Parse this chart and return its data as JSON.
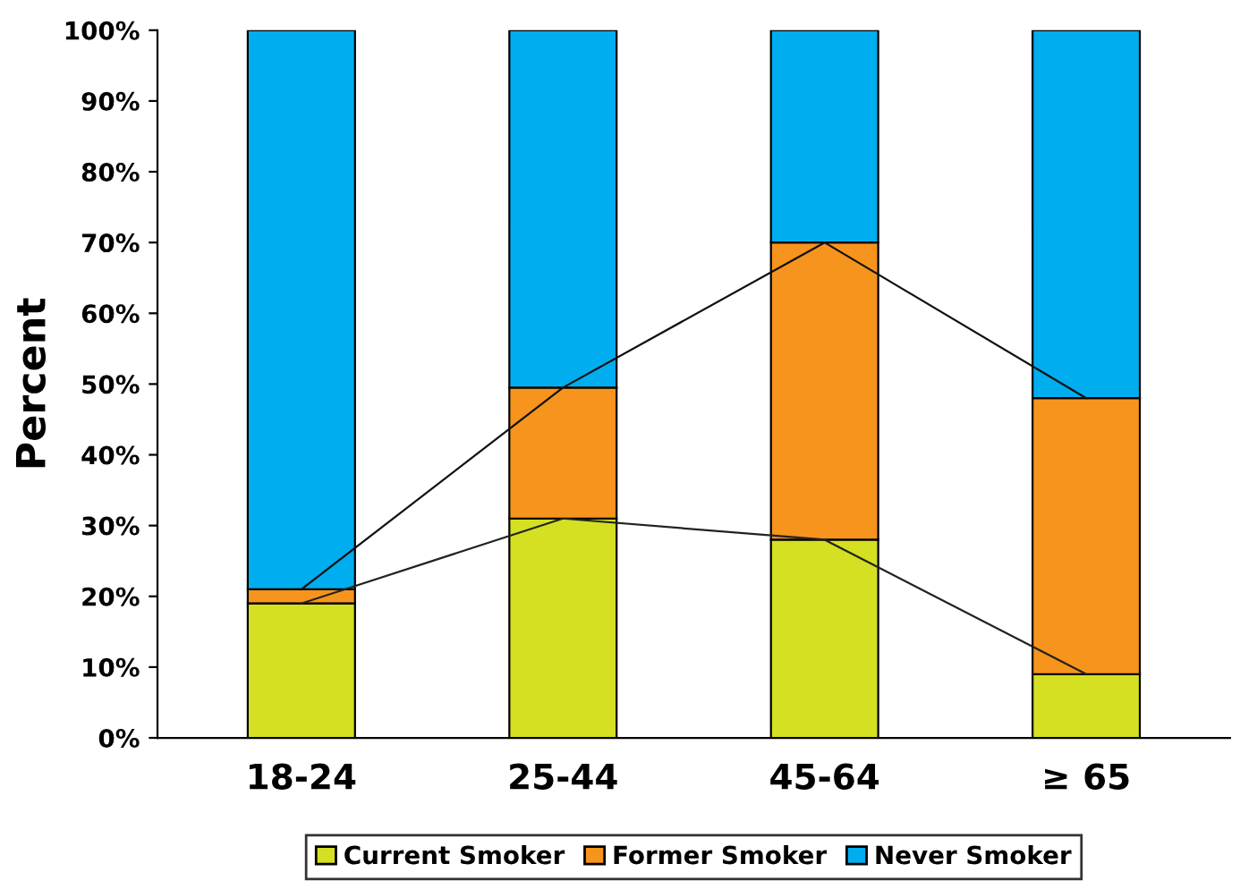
{
  "chart_data": {
    "type": "bar",
    "stacked": true,
    "ylabel": "Percent",
    "categories": [
      "18-24",
      "25-44",
      "45-64",
      "≥ 65"
    ],
    "series": [
      {
        "name": "Current Smoker",
        "color": "#d4e021",
        "values": [
          19,
          31,
          28,
          9
        ]
      },
      {
        "name": "Former Smoker",
        "color": "#f7941d",
        "values": [
          2,
          18.5,
          42,
          39
        ]
      },
      {
        "name": "Never Smoker",
        "color": "#00aeef",
        "values": [
          79,
          50.5,
          30,
          52
        ]
      },
      {
        "type": "line",
        "color": "#222222",
        "values": [
          19,
          31,
          28,
          9
        ]
      },
      {
        "type": "line",
        "color": "#111111",
        "values": [
          21,
          49.5,
          70,
          48
        ]
      }
    ],
    "ylim": [
      0,
      100
    ],
    "yticks": [
      {
        "value": 0,
        "label": "0%"
      },
      {
        "value": 10,
        "label": "10%"
      },
      {
        "value": 20,
        "label": "20%"
      },
      {
        "value": 30,
        "label": "30%"
      },
      {
        "value": 40,
        "label": "40%"
      },
      {
        "value": 50,
        "label": "50%"
      },
      {
        "value": 60,
        "label": "60%"
      },
      {
        "value": 70,
        "label": "70%"
      },
      {
        "value": 80,
        "label": "80%"
      },
      {
        "value": 90,
        "label": "90%"
      },
      {
        "value": 100,
        "label": "100%"
      }
    ],
    "grid": false,
    "legend": "bottom"
  }
}
